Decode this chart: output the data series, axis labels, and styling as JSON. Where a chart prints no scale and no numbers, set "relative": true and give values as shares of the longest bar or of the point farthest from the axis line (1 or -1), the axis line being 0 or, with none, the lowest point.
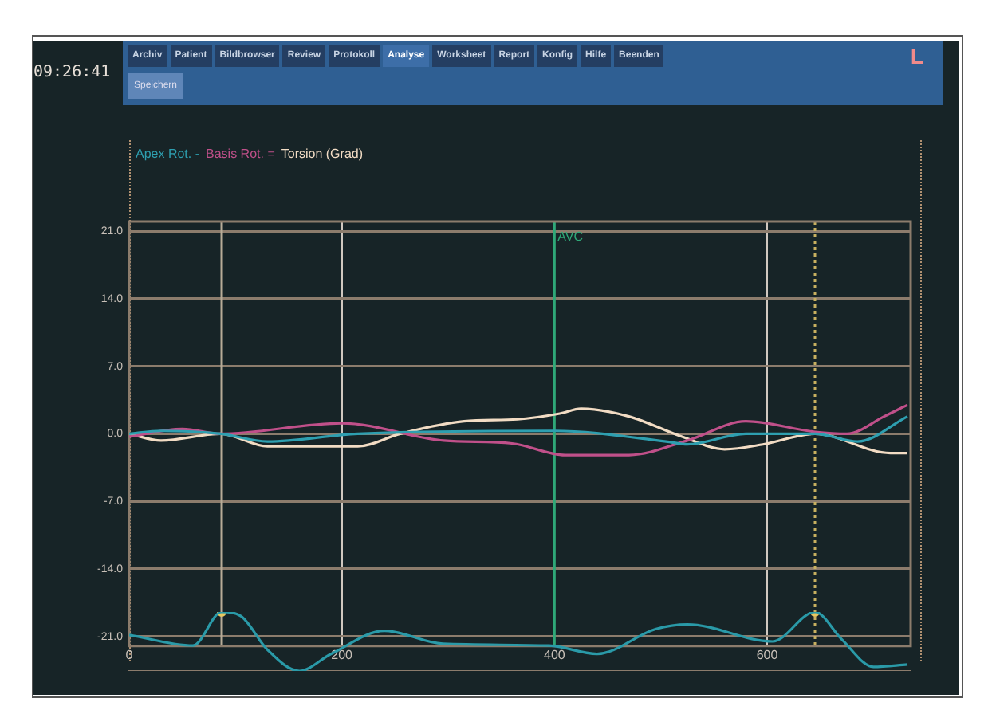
{
  "chart_data": [
    {
      "type": "line",
      "legend": "top left",
      "grid": true,
      "annotations": [
        "09:26:41",
        "Archiv",
        "Patient",
        "Bildbrowser",
        "Review",
        "Protokoll",
        "Analyse",
        "Worksheet",
        "Report",
        "Konfig",
        "Hilfe",
        "Beenden",
        "Speichern",
        "L"
      ],
      "xlim": [
        0,
        735
      ],
      "xticks": [
        0,
        200,
        400,
        600
      ],
      "ylim": [
        -22,
        22
      ],
      "yticks": [
        {
          "value": 21,
          "label": "21.0"
        },
        {
          "value": 14,
          "label": "14.0"
        },
        {
          "value": 7,
          "label": "7.0"
        },
        {
          "value": 0,
          "label": "0.0"
        },
        {
          "value": -7,
          "label": "-7.0"
        },
        {
          "value": -14,
          "label": "-14.0"
        },
        {
          "value": -21,
          "label": "-21.0"
        }
      ],
      "ref_lines": [
        {
          "axis": "x",
          "value": 87,
          "label": null,
          "color": "#b8ac98"
        },
        {
          "axis": "x",
          "value": 400,
          "label": "AVC",
          "color": "#2fa878"
        },
        {
          "axis": "x",
          "value": 645,
          "label": null,
          "color": "#c8b060",
          "line_style": "dotted"
        }
      ],
      "series": [
        {
          "name": "Apex Rot. -",
          "color": "#2e9fb0",
          "x": [
            0,
            30,
            86,
            130,
            215,
            400,
            505,
            525,
            580,
            645,
            685,
            732
          ],
          "values": [
            0,
            0.3,
            0,
            -0.8,
            0,
            0.3,
            -0.8,
            -1.1,
            0,
            0,
            -0.8,
            1.8
          ]
        },
        {
          "name": "Basis Rot. =",
          "color": "#c0508a",
          "x": [
            0,
            50,
            86,
            200,
            296,
            360,
            410,
            470,
            525,
            580,
            645,
            675,
            710,
            732
          ],
          "values": [
            -0.3,
            0.5,
            0,
            1.1,
            -0.7,
            -1.0,
            -2.2,
            -2.2,
            -0.7,
            1.3,
            0.2,
            0,
            1.8,
            3.0
          ]
        },
        {
          "name": "Torsion (Grad)",
          "color": "#f2dcc4",
          "x": [
            0,
            30,
            86,
            130,
            215,
            255,
            315,
            365,
            405,
            425,
            470,
            520,
            560,
            596,
            645,
            716,
            732
          ],
          "values": [
            0,
            -0.7,
            0,
            -1.3,
            -1.3,
            0,
            1.3,
            1.5,
            2.1,
            2.6,
            1.8,
            -0.3,
            -1.6,
            -1.1,
            0,
            -2.0,
            -2.0
          ]
        }
      ]
    },
    {
      "type": "line",
      "relative": true,
      "xlim": [
        0,
        735
      ],
      "series": [
        {
          "color": "#2a9aa8",
          "x": [
            0,
            60,
            87,
            105,
            130,
            160,
            190,
            240,
            295,
            395,
            440,
            495,
            525,
            605,
            645,
            670,
            700,
            732
          ],
          "values": [
            0.61,
            0.43,
            1,
            0.93,
            0.36,
            0,
            0.29,
            0.68,
            0.46,
            0.43,
            0.29,
            0.71,
            0.79,
            0.5,
            1,
            0.54,
            0.07,
            0.11
          ]
        },
        {
          "type": "scatter",
          "marker": "circle",
          "color": "#e8c860",
          "x": [
            87,
            645
          ],
          "values": [
            1,
            1
          ]
        }
      ]
    }
  ]
}
